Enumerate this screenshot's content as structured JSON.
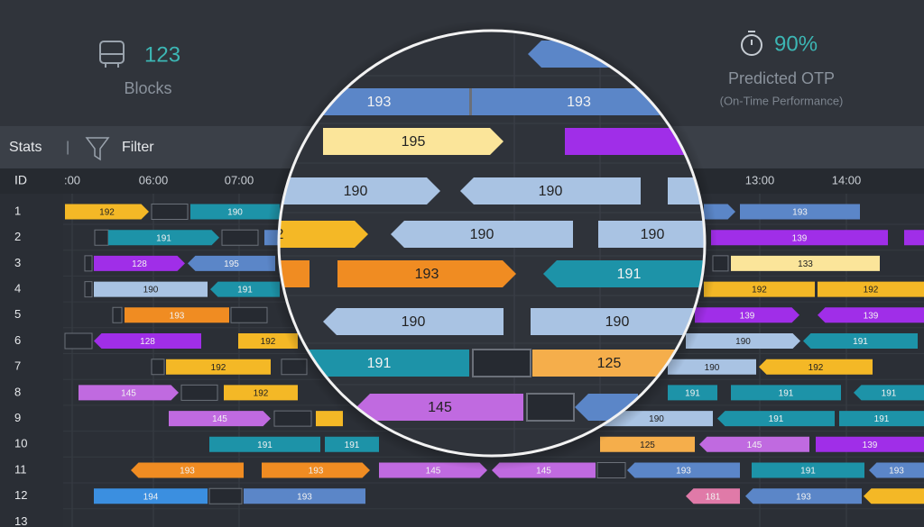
{
  "header": {
    "stats": [
      {
        "value": "123",
        "label": "Blocks"
      },
      {
        "value": "90%",
        "label": "Predicted OTP",
        "sublabel": "(On-Time Performance)"
      }
    ]
  },
  "toolbar": {
    "stats": "Stats",
    "separator": "|",
    "filter": "Filter"
  },
  "timeline": {
    "id_label": "ID",
    "hours": [
      ":00",
      "06:00",
      "07:00",
      "13:00",
      "14:00"
    ]
  },
  "rows": [
    {
      "id": "1",
      "blocks": [
        "192",
        "190",
        "193"
      ]
    },
    {
      "id": "2",
      "blocks": [
        "191",
        "139"
      ]
    },
    {
      "id": "3",
      "blocks": [
        "128",
        "195",
        "133"
      ]
    },
    {
      "id": "4",
      "blocks": [
        "190",
        "191",
        "192",
        "192"
      ]
    },
    {
      "id": "5",
      "blocks": [
        "193",
        "139",
        "139"
      ]
    },
    {
      "id": "6",
      "blocks": [
        "128",
        "192",
        "190",
        "191"
      ]
    },
    {
      "id": "7",
      "blocks": [
        "192",
        "190",
        "192"
      ]
    },
    {
      "id": "8",
      "blocks": [
        "145",
        "192",
        "191",
        "191",
        "191"
      ]
    },
    {
      "id": "9",
      "blocks": [
        "145",
        "190",
        "191",
        "191"
      ]
    },
    {
      "id": "10",
      "blocks": [
        "191",
        "191",
        "125",
        "145",
        "139"
      ]
    },
    {
      "id": "11",
      "blocks": [
        "193",
        "193",
        "145",
        "145",
        "193",
        "191",
        "193"
      ]
    },
    {
      "id": "12",
      "blocks": [
        "194",
        "193",
        "181",
        "193"
      ]
    },
    {
      "id": "13",
      "blocks": []
    }
  ],
  "magnifier": {
    "blocks": [
      "193",
      "193",
      "195",
      "190",
      "190",
      "2",
      "190",
      "190",
      "193",
      "191",
      "190",
      "190",
      "191",
      "125",
      "145"
    ]
  }
}
